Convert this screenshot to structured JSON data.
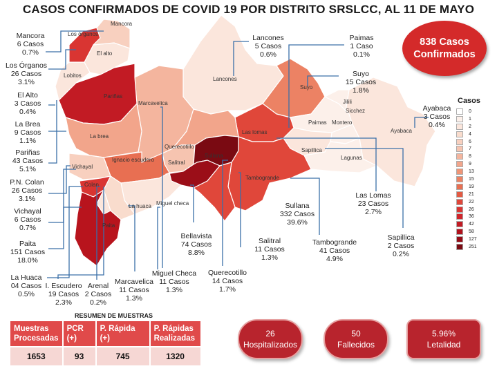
{
  "title": "CASOS CONFIRMADOS DE COVID 19 POR DISTRITO SRSLCC, AL 11 DE MAYO",
  "total": {
    "line1": "838 Casos",
    "line2": "Confirmados"
  },
  "legend": {
    "title": "Casos",
    "items": [
      {
        "label": "0",
        "color": "#ffffff"
      },
      {
        "label": "1",
        "color": "#fcf0ea"
      },
      {
        "label": "2",
        "color": "#fbe6dc"
      },
      {
        "label": "4",
        "color": "#f9dccd"
      },
      {
        "label": "6",
        "color": "#f8d0bf"
      },
      {
        "label": "7",
        "color": "#f6c4b0"
      },
      {
        "label": "8",
        "color": "#f4b59e"
      },
      {
        "label": "9",
        "color": "#f2a58b"
      },
      {
        "label": "13",
        "color": "#ef9577"
      },
      {
        "label": "15",
        "color": "#ec8264"
      },
      {
        "label": "19",
        "color": "#e86f52"
      },
      {
        "label": "21",
        "color": "#e35a43"
      },
      {
        "label": "22",
        "color": "#e0473a"
      },
      {
        "label": "26",
        "color": "#d93532"
      },
      {
        "label": "36",
        "color": "#cf252b"
      },
      {
        "label": "42",
        "color": "#c21b24"
      },
      {
        "label": "58",
        "color": "#b0121d"
      },
      {
        "label": "127",
        "color": "#960c17"
      },
      {
        "label": "251",
        "color": "#7a0a12"
      }
    ]
  },
  "districts": {
    "mancora": {
      "name": "Mancora",
      "cases": "6 Casos",
      "pct": "0.7%",
      "map_label": "Mancora",
      "color": "#f8d0bf"
    },
    "organos": {
      "name": "Los Órganos",
      "cases": "26 Casos",
      "pct": "3.1%",
      "map_label": "Los órganos",
      "color": "#d93532"
    },
    "elalto": {
      "name": "El Alto",
      "cases": "3 Casos",
      "pct": "0.4%",
      "map_label": "El alto",
      "color": "#fbe6dc"
    },
    "labrea": {
      "name": "La Brea",
      "cases": "9 Casos",
      "pct": "1.1%",
      "map_label": "La brea",
      "color": "#f2a58b"
    },
    "parinas": {
      "name": "Pariñas",
      "cases": "43 Casos",
      "pct": "5.1%",
      "map_label": "Pariñas",
      "color": "#c21b24"
    },
    "colan": {
      "name": "P.N. Colan",
      "cases": "26 Casos",
      "pct": "3.1%",
      "map_label": "Colan",
      "color": "#d93532"
    },
    "vichayal": {
      "name": "Vichayal",
      "cases": "6 Casos",
      "pct": "0.7%",
      "map_label": "Vichayal",
      "color": "#f8d0bf"
    },
    "paita": {
      "name": "Paita",
      "cases": "151 Casos",
      "pct": "18.0%",
      "map_label": "Paita",
      "color": "#b8141d"
    },
    "lahuaca": {
      "name": "La Huaca",
      "cases": "04 Casos",
      "pct": "0.5%",
      "map_label": "La huaca",
      "color": "#f9dccd"
    },
    "escudero": {
      "name": "I. Escudero",
      "cases": "19 Casos",
      "pct": "2.3%",
      "map_label": "Ignacio escudero",
      "color": "#e86f52"
    },
    "arenal": {
      "name": "Arenal",
      "cases": "2 Casos",
      "pct": "0.2%",
      "map_label": "",
      "color": "#fbe6dc"
    },
    "marcavelica": {
      "name": "Marcavelica",
      "cases": "11 Casos",
      "pct": "1.3%",
      "map_label": "Marcavelica",
      "color": "#f4b59e"
    },
    "miguelcheca": {
      "name": "Miguel Checa",
      "cases": "11 Casos",
      "pct": "1.3%",
      "map_label": "Miguel checa",
      "color": "#fbe6dc"
    },
    "bellavista": {
      "name": "Bellavista",
      "cases": "74 Casos",
      "pct": "8.8%",
      "map_label": "",
      "color": "#9b0e18"
    },
    "querecotillo": {
      "name": "Querecotillo",
      "cases": "14 Casos",
      "pct": "1.7%",
      "map_label": "Querecotillo",
      "color": "#f2a58b"
    },
    "salitral": {
      "name": "Salitral",
      "cases": "11 Casos",
      "pct": "1.3%",
      "map_label": "Salitral",
      "color": "#f6c4b0"
    },
    "sullana": {
      "name": "Sullana",
      "cases": "332 Casos",
      "pct": "39.6%",
      "map_label": "Sullana",
      "color": "#7a0a12"
    },
    "tambogrande": {
      "name": "Tambogrande",
      "cases": "41 Casos",
      "pct": "4.9%",
      "map_label": "Tambogrande",
      "color": "#e0473a"
    },
    "sapillica": {
      "name": "Sapillica",
      "cases": "2 Casos",
      "pct": "0.2%",
      "map_label": "Sapillica",
      "color": "#fbe6dc"
    },
    "laslomas": {
      "name": "Las Lomas",
      "cases": "23 Casos",
      "pct": "2.7%",
      "map_label": "Las lomas",
      "color": "#e0473a"
    },
    "lancones": {
      "name": "Lancones",
      "cases": "5 Casos",
      "pct": "0.6%",
      "map_label": "Lancones",
      "color": "#fbe6dc"
    },
    "paimas": {
      "name": "Paimas",
      "cases": "1 Caso",
      "pct": "0.1%",
      "map_label": "Paimas",
      "color": "#fcf0ea"
    },
    "suyo": {
      "name": "Suyo",
      "cases": "15 Casos",
      "pct": "1.8%",
      "map_label": "Suyo",
      "color": "#ec8264"
    },
    "ayabaca": {
      "name": "Ayabaca",
      "cases": "3 Casos",
      "pct": "0.4%",
      "map_label": "Ayabaca",
      "color": "#fbe6dc"
    }
  },
  "map_other_labels": {
    "lobitos": "Lobitos",
    "jilili": "Jilili",
    "sicchez": "Sicchez",
    "montero": "Montero",
    "lagunas": "Lagunas"
  },
  "resumen": {
    "title": "RESUMEN DE MUESTRAS",
    "headers": [
      "Muestras Procesadas",
      "PCR (+)",
      "P. Rápida (+)",
      "P. Rápidas Realizadas"
    ],
    "values": [
      "1653",
      "93",
      "745",
      "1320"
    ]
  },
  "stats": {
    "hospitalizados": {
      "value": "26",
      "label": "Hospitalizados"
    },
    "fallecidos": {
      "value": "50",
      "label": "Fallecidos"
    },
    "letalidad": {
      "value": "5.96%",
      "label": "Letalidad"
    }
  }
}
